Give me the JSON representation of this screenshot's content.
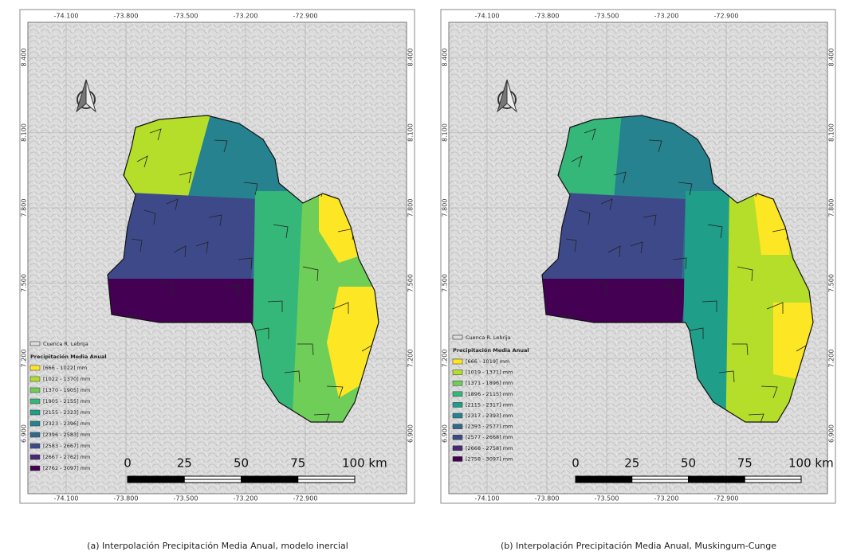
{
  "panels": [
    {
      "caption": "(a) Interpolación Precipitación Media Anual, modelo inercial",
      "x_labels": [
        "-74.100",
        "-73.800",
        "-73.500",
        "-73.200",
        "-72.900"
      ],
      "y_labels": [
        "8.400",
        "8.100",
        "7.800",
        "7.500",
        "7.200",
        "6.900"
      ],
      "legend": {
        "boundary": "Cuenca R. Lebrija",
        "title": "Precipitación Media Anual",
        "classes": [
          {
            "label": "[666 - 1022] mm",
            "color": "#fde725"
          },
          {
            "label": "[1022 - 1370] mm",
            "color": "#b5de2b"
          },
          {
            "label": "[1370 - 1905] mm",
            "color": "#6ece58"
          },
          {
            "label": "[1905 - 2155] mm",
            "color": "#35b779"
          },
          {
            "label": "[2155 - 2323] mm",
            "color": "#1f9e89"
          },
          {
            "label": "[2323 - 2396] mm",
            "color": "#26828e"
          },
          {
            "label": "[2396 - 2583] mm",
            "color": "#31688e"
          },
          {
            "label": "[2583 - 2667] mm",
            "color": "#3e4989"
          },
          {
            "label": "[2667 - 2762] mm",
            "color": "#482878"
          },
          {
            "label": "[2762 - 3097] mm",
            "color": "#440154"
          }
        ]
      },
      "scale": [
        "0",
        "25",
        "50",
        "75",
        "100 km"
      ]
    },
    {
      "caption": "(b) Interpolación Precipitación Media Anual, Muskingum-Cunge",
      "x_labels": [
        "-74.100",
        "-73.800",
        "-73.500",
        "-73.200",
        "-72.900"
      ],
      "y_labels": [
        "8.400",
        "8.100",
        "7.800",
        "7.500",
        "7.200",
        "6.900"
      ],
      "legend": {
        "boundary": "Cuenca R. Lebrija",
        "title": "Precipitación Media Anual",
        "classes": [
          {
            "label": "[666 - 1019] mm",
            "color": "#fde725"
          },
          {
            "label": "[1019 - 1371] mm",
            "color": "#b5de2b"
          },
          {
            "label": "[1371 - 1896] mm",
            "color": "#6ece58"
          },
          {
            "label": "[1896 - 2115] mm",
            "color": "#35b779"
          },
          {
            "label": "[2115 - 2317] mm",
            "color": "#1f9e89"
          },
          {
            "label": "[2317 - 2393] mm",
            "color": "#26828e"
          },
          {
            "label": "[2393 - 2577] mm",
            "color": "#31688e"
          },
          {
            "label": "[2577 - 2668] mm",
            "color": "#3e4989"
          },
          {
            "label": "[2668 - 2758] mm",
            "color": "#482878"
          },
          {
            "label": "[2758 - 3097] mm",
            "color": "#440154"
          }
        ]
      },
      "scale": [
        "0",
        "25",
        "50",
        "75",
        "100 km"
      ]
    }
  ]
}
